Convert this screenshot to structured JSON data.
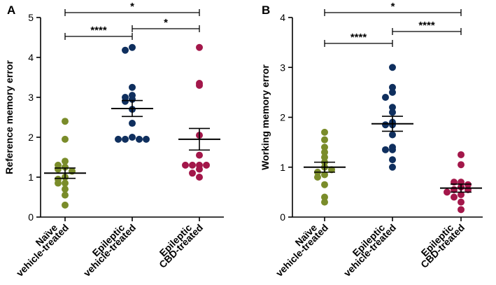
{
  "colors": {
    "naive": "#7a8c2a",
    "epileptic_vehicle": "#0f2f5e",
    "epileptic_cbd": "#a3174a",
    "axis": "#000000"
  },
  "chart_data": [
    {
      "type": "scatter",
      "panel_label": "A",
      "ylabel": "Reference memory error",
      "ylim": [
        0,
        5
      ],
      "yticks": [
        "0",
        "1",
        "2",
        "3",
        "4",
        "5"
      ],
      "groups": [
        {
          "name_line1": "Naïve",
          "name_line2": "vehicle-treated",
          "values": [
            2.4,
            1.95,
            1.4,
            1.3,
            1.25,
            1.2,
            1.15,
            1.0,
            0.95,
            0.85,
            0.85,
            0.7,
            0.55,
            0.3
          ],
          "mean": 1.1,
          "sem": 0.13
        },
        {
          "name_line1": "Epileptic",
          "name_line2": "vehicle-treated",
          "values": [
            4.25,
            4.18,
            3.25,
            3.05,
            3.0,
            2.95,
            2.9,
            2.7,
            2.35,
            2.0,
            1.95,
            1.95,
            1.95,
            1.95
          ],
          "mean": 2.72,
          "sem": 0.2
        },
        {
          "name_line1": "Epileptic",
          "name_line2": "CBD-treated",
          "values": [
            4.25,
            3.35,
            3.3,
            2.05,
            1.55,
            1.3,
            1.3,
            1.3,
            1.3,
            1.2,
            1.1,
            1.0
          ],
          "mean": 1.95,
          "sem": 0.27
        }
      ],
      "significance": [
        {
          "from": 0,
          "to": 2,
          "label": "*"
        },
        {
          "from": 0,
          "to": 1,
          "label": "****"
        },
        {
          "from": 1,
          "to": 2,
          "label": "*"
        }
      ]
    },
    {
      "type": "scatter",
      "panel_label": "B",
      "ylabel": "Working memory error",
      "ylim": [
        0,
        4
      ],
      "yticks": [
        "0",
        "1",
        "2",
        "3",
        "4"
      ],
      "groups": [
        {
          "name_line1": "Naïve",
          "name_line2": "vehicle-treated",
          "values": [
            1.7,
            1.55,
            1.4,
            1.3,
            1.2,
            1.1,
            1.0,
            0.9,
            0.95,
            0.85,
            0.8,
            0.65,
            0.4,
            0.3
          ],
          "mean": 1.0,
          "sem": 0.1
        },
        {
          "name_line1": "Epileptic",
          "name_line2": "vehicle-treated",
          "values": [
            3.0,
            2.6,
            2.5,
            2.4,
            2.2,
            2.1,
            1.9,
            1.85,
            1.85,
            1.65,
            1.4,
            1.35,
            1.35,
            1.15,
            1.0
          ],
          "mean": 1.87,
          "sem": 0.15
        },
        {
          "name_line1": "Epileptic",
          "name_line2": "CBD-treated",
          "values": [
            1.25,
            1.05,
            0.7,
            0.7,
            0.65,
            0.6,
            0.55,
            0.55,
            0.5,
            0.45,
            0.4,
            0.3,
            0.15
          ],
          "mean": 0.58,
          "sem": 0.08
        }
      ],
      "significance": [
        {
          "from": 0,
          "to": 2,
          "label": "*"
        },
        {
          "from": 0,
          "to": 1,
          "label": "****"
        },
        {
          "from": 1,
          "to": 2,
          "label": "****"
        }
      ]
    }
  ]
}
